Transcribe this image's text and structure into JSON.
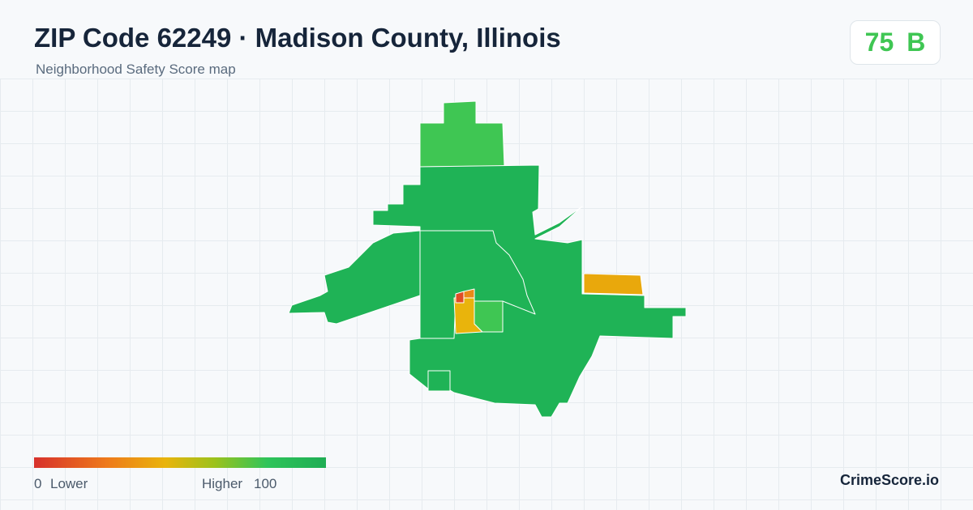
{
  "header": {
    "title": "ZIP Code 62249 · Madison County, Illinois",
    "subtitle": "Neighborhood Safety Score map"
  },
  "score": {
    "value": "75",
    "grade": "B"
  },
  "legend": {
    "min": "0",
    "min_label": "Lower",
    "max_label": "Higher",
    "max": "100"
  },
  "brand": "CrimeScore.io"
}
